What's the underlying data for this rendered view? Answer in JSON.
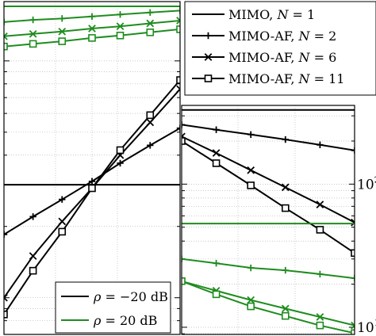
{
  "chart_data": [
    {
      "type": "line",
      "panel": "left",
      "yscale": "log",
      "grid": true,
      "series": [
        {
          "marker": "none",
          "color": "#000000",
          "values": [
            [
              0,
              0.3
            ],
            [
              1,
              0.3
            ]
          ]
        },
        {
          "marker": "plus",
          "color": "#000000",
          "values": [
            [
              0,
              0.185
            ],
            [
              0.165,
              0.22
            ],
            [
              0.33,
              0.26
            ],
            [
              0.5,
              0.31
            ],
            [
              0.66,
              0.37
            ],
            [
              0.83,
              0.44
            ],
            [
              1,
              0.52
            ]
          ]
        },
        {
          "marker": "cross",
          "color": "#000000",
          "values": [
            [
              0,
              0.1
            ],
            [
              0.165,
              0.15
            ],
            [
              0.33,
              0.21
            ],
            [
              0.5,
              0.29
            ],
            [
              0.66,
              0.4
            ],
            [
              0.83,
              0.55
            ],
            [
              1,
              0.76
            ]
          ]
        },
        {
          "marker": "square",
          "color": "#000000",
          "values": [
            [
              0,
              0.085
            ],
            [
              0.165,
              0.13
            ],
            [
              0.33,
              0.19
            ],
            [
              0.5,
              0.29
            ],
            [
              0.66,
              0.42
            ],
            [
              0.83,
              0.59
            ],
            [
              1,
              0.83
            ]
          ]
        },
        {
          "marker": "none",
          "color": "#1f8c1f",
          "values": [
            [
              0,
              1.7
            ],
            [
              1,
              1.7
            ]
          ]
        },
        {
          "marker": "plus",
          "color": "#1f8c1f",
          "values": [
            [
              0,
              1.46
            ],
            [
              0.165,
              1.49
            ],
            [
              0.33,
              1.51
            ],
            [
              0.5,
              1.54
            ],
            [
              0.66,
              1.57
            ],
            [
              0.83,
              1.6
            ],
            [
              1,
              1.63
            ]
          ]
        },
        {
          "marker": "cross",
          "color": "#1f8c1f",
          "values": [
            [
              0,
              1.27
            ],
            [
              0.165,
              1.3
            ],
            [
              0.33,
              1.33
            ],
            [
              0.5,
              1.37
            ],
            [
              0.66,
              1.4
            ],
            [
              0.83,
              1.44
            ],
            [
              1,
              1.48
            ]
          ]
        },
        {
          "marker": "square",
          "color": "#1f8c1f",
          "values": [
            [
              0,
              1.15
            ],
            [
              0.165,
              1.18
            ],
            [
              0.33,
              1.21
            ],
            [
              0.5,
              1.25
            ],
            [
              0.66,
              1.28
            ],
            [
              0.83,
              1.32
            ],
            [
              1,
              1.36
            ]
          ]
        }
      ]
    },
    {
      "type": "line",
      "panel": "right",
      "yscale": "log",
      "grid": true,
      "ytick_labels": [
        {
          "value": 100,
          "label": "10",
          "exp": "2"
        },
        {
          "value": 10,
          "label": "10",
          "exp": "1"
        }
      ],
      "series": [
        {
          "marker": "none",
          "color": "#000000",
          "values": [
            [
              0,
              330
            ],
            [
              1,
              330
            ]
          ]
        },
        {
          "marker": "plus",
          "color": "#000000",
          "values": [
            [
              0,
              260
            ],
            [
              0.2,
              240
            ],
            [
              0.4,
              222
            ],
            [
              0.6,
              205
            ],
            [
              0.8,
              188
            ],
            [
              1,
              172
            ]
          ]
        },
        {
          "marker": "cross",
          "color": "#000000",
          "values": [
            [
              0,
              215
            ],
            [
              0.2,
              165
            ],
            [
              0.4,
              125
            ],
            [
              0.6,
              95
            ],
            [
              0.8,
              72
            ],
            [
              1,
              54
            ]
          ]
        },
        {
          "marker": "square",
          "color": "#000000",
          "values": [
            [
              0,
              200
            ],
            [
              0.2,
              140
            ],
            [
              0.4,
              98
            ],
            [
              0.6,
              68
            ],
            [
              0.8,
              48
            ],
            [
              1,
              33
            ]
          ]
        },
        {
          "marker": "none",
          "color": "#1f8c1f",
          "values": [
            [
              0,
              53
            ],
            [
              1,
              53
            ]
          ]
        },
        {
          "marker": "plus",
          "color": "#1f8c1f",
          "values": [
            [
              0,
              30
            ],
            [
              0.2,
              28
            ],
            [
              0.4,
              26
            ],
            [
              0.6,
              25
            ],
            [
              0.8,
              23.5
            ],
            [
              1,
              22
            ]
          ]
        },
        {
          "marker": "cross",
          "color": "#1f8c1f",
          "values": [
            [
              0,
              21
            ],
            [
              0.2,
              18
            ],
            [
              0.4,
              15.5
            ],
            [
              0.6,
              13.5
            ],
            [
              0.8,
              11.8
            ],
            [
              1,
              10.3
            ]
          ]
        },
        {
          "marker": "square",
          "color": "#1f8c1f",
          "values": [
            [
              0,
              21
            ],
            [
              0.2,
              17
            ],
            [
              0.4,
              14
            ],
            [
              0.6,
              12
            ],
            [
              0.8,
              10.3
            ],
            [
              1,
              9.1
            ]
          ]
        }
      ]
    }
  ],
  "legend_main": {
    "entries": [
      {
        "marker": "none",
        "label": "MIMO, ",
        "var": "N",
        "rest": " = 1"
      },
      {
        "marker": "plus",
        "label": "MIMO-AF, ",
        "var": "N",
        "rest": " = 2"
      },
      {
        "marker": "cross",
        "label": "MIMO-AF, ",
        "var": "N",
        "rest": " = 6"
      },
      {
        "marker": "square",
        "label": "MIMO-AF, ",
        "var": "N",
        "rest": " = 11"
      }
    ]
  },
  "legend_rho": {
    "entries": [
      {
        "color": "#000000",
        "var": "ρ",
        "rest": " = −20 dB"
      },
      {
        "color": "#1f8c1f",
        "var": "ρ",
        "rest": " = 20 dB"
      }
    ]
  }
}
